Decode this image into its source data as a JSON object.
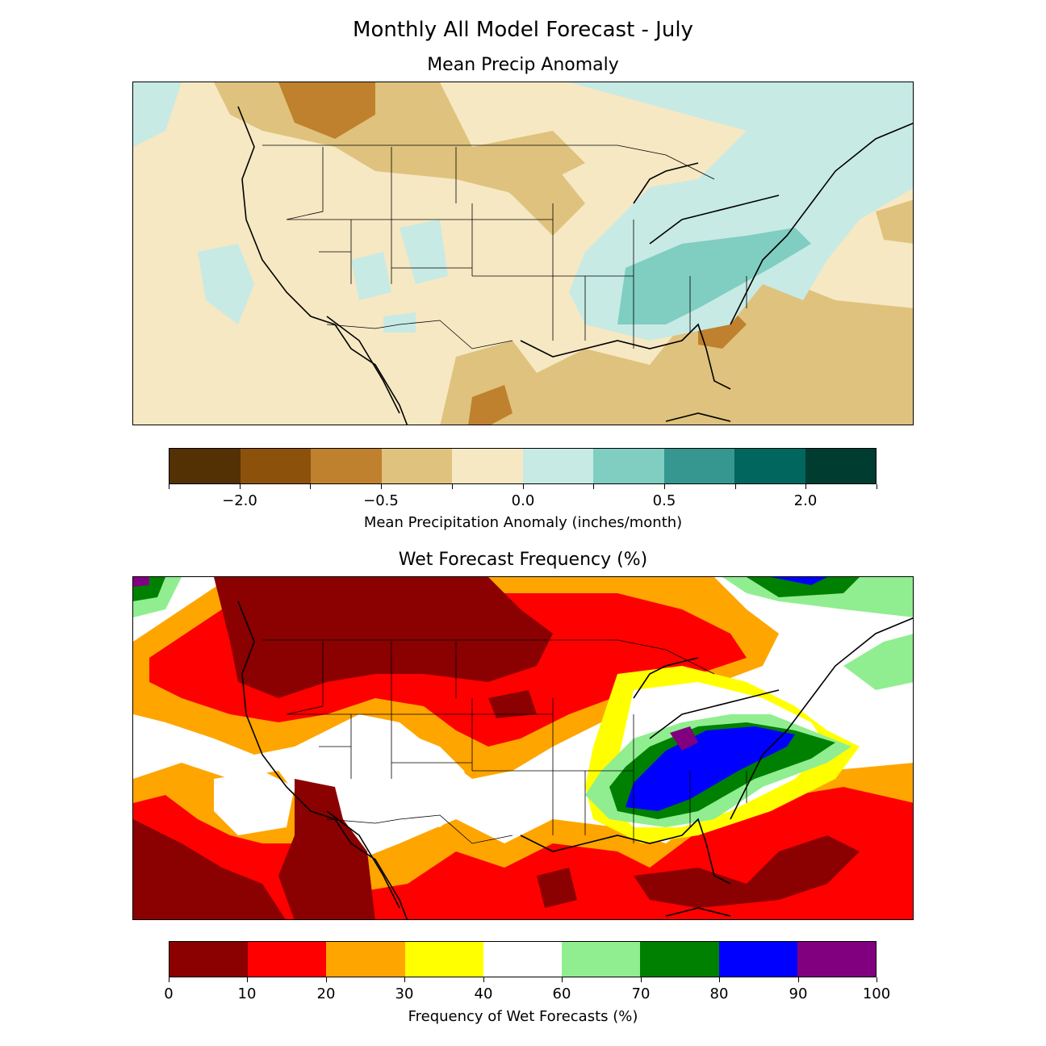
{
  "suptitle": "Monthly All Model Forecast - July",
  "panel1": {
    "title": "Mean Precip Anomaly",
    "colorbar": {
      "label": "Mean Precipitation Anomaly (inches/month)",
      "colors": [
        "#543005",
        "#8c510a",
        "#bf812d",
        "#dfc27d",
        "#f6e8c3",
        "#c7eae5",
        "#80cdc1",
        "#35978f",
        "#01665e",
        "#003c30"
      ],
      "tick_labels": [
        "−2.0",
        "−0.5",
        "0.0",
        "0.5",
        "2.0"
      ]
    }
  },
  "panel2": {
    "title": "Wet Forecast Frequency (%)",
    "colorbar": {
      "label": "Frequency of Wet Forecasts (%)",
      "colors": [
        "#8b0000",
        "#ff0000",
        "#ffa500",
        "#ffff00",
        "#ffffff",
        "#90ee90",
        "#008000",
        "#0000ff",
        "#800080"
      ],
      "tick_labels": [
        "0",
        "10",
        "20",
        "30",
        "40",
        "60",
        "70",
        "80",
        "90",
        "100"
      ]
    }
  }
}
